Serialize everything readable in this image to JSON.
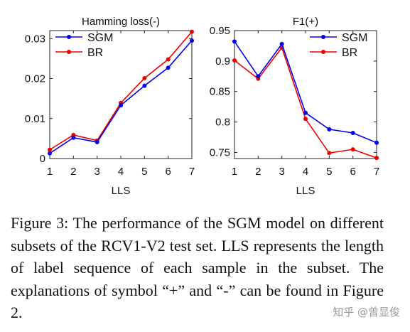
{
  "chart_data": [
    {
      "type": "line",
      "title": "Hamming loss(-)",
      "xlabel": "LLS",
      "ylabel": "",
      "x": [
        1,
        2,
        3,
        4,
        5,
        6,
        7
      ],
      "ylim": [
        0,
        0.032
      ],
      "yticks": [
        0,
        0.01,
        0.02,
        0.03
      ],
      "ytick_labels": [
        "0",
        "0.01",
        "0.02",
        "0.03"
      ],
      "legend_position": "top-left",
      "series": [
        {
          "name": "SGM",
          "color": "#0000ee",
          "values": [
            0.0013,
            0.0052,
            0.0041,
            0.0133,
            0.0182,
            0.0227,
            0.0295
          ]
        },
        {
          "name": "BR",
          "color": "#ee0000",
          "values": [
            0.0022,
            0.0059,
            0.0045,
            0.0139,
            0.0201,
            0.0248,
            0.0317
          ]
        }
      ]
    },
    {
      "type": "line",
      "title": "F1(+)",
      "xlabel": "LLS",
      "ylabel": "",
      "x": [
        1,
        2,
        3,
        4,
        5,
        6,
        7
      ],
      "ylim": [
        0.74,
        0.95
      ],
      "yticks": [
        0.75,
        0.8,
        0.85,
        0.9,
        0.95
      ],
      "ytick_labels": [
        "0.75",
        "0.8",
        "0.85",
        "0.9",
        "0.95"
      ],
      "legend_position": "top-right",
      "series": [
        {
          "name": "SGM",
          "color": "#0000ee",
          "values": [
            0.932,
            0.875,
            0.928,
            0.815,
            0.788,
            0.782,
            0.766
          ]
        },
        {
          "name": "BR",
          "color": "#ee0000",
          "values": [
            0.901,
            0.871,
            0.922,
            0.805,
            0.749,
            0.755,
            0.741
          ]
        }
      ]
    }
  ],
  "caption": "Figure 3: The performance of the SGM model on different subsets of the RCV1-V2 test set. LLS represents the length of label sequence of each sample in the subset. The explanations of symbol “+” and “-” can be found in Figure 2.",
  "watermark": "知乎 @曾显俊"
}
